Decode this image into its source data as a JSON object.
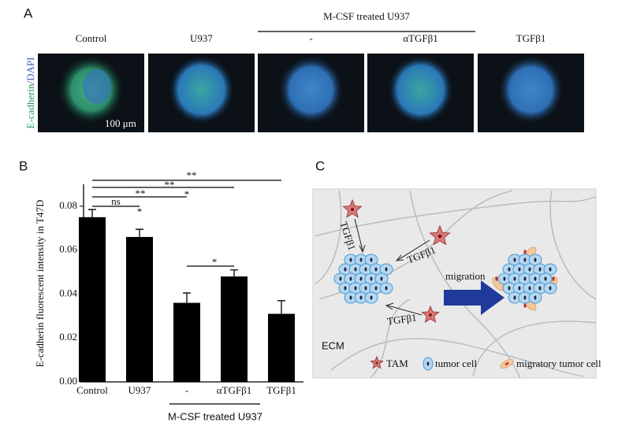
{
  "panel_a": {
    "label": "A",
    "group_label": "M-CSF treated U937",
    "columns": [
      "Control",
      "U937",
      "-",
      "αTGFβ1",
      "TGFβ1"
    ],
    "stain_green": "E-cadherin",
    "stain_blue": "/DAPI",
    "scale_bar": "100 μm"
  },
  "chart_data": {
    "type": "bar",
    "panel_label": "B",
    "ylabel": "E-cadherin fluorescent intensity in T47D",
    "categories": [
      "Control",
      "U937",
      "-",
      "αTGFβ1",
      "TGFβ1"
    ],
    "values": [
      0.075,
      0.066,
      0.036,
      0.048,
      0.031
    ],
    "errors": [
      0.0035,
      0.0035,
      0.0045,
      0.003,
      0.006
    ],
    "color": "#000000",
    "ylim": [
      0,
      0.09
    ],
    "yticks": [
      {
        "value": 0,
        "label": "0.00"
      },
      0.02,
      0.04,
      0.06,
      0.08
    ],
    "group_label": "M-CSF treated U937",
    "annotations": [
      {
        "label": "**"
      },
      {
        "label": "**"
      },
      {
        "label": "**"
      },
      {
        "label": "*"
      },
      {
        "label": "ns"
      },
      {
        "label": "*"
      },
      {
        "label": "*"
      }
    ]
  },
  "panel_c": {
    "label": "C",
    "signals": [
      "TGFβ1",
      "TGFβ1",
      "TGFβ1"
    ],
    "arrow_label": "migration",
    "ecm_label": "ECM",
    "legend": [
      "TAM",
      "tumor cell",
      "migratory tumor cell"
    ]
  }
}
